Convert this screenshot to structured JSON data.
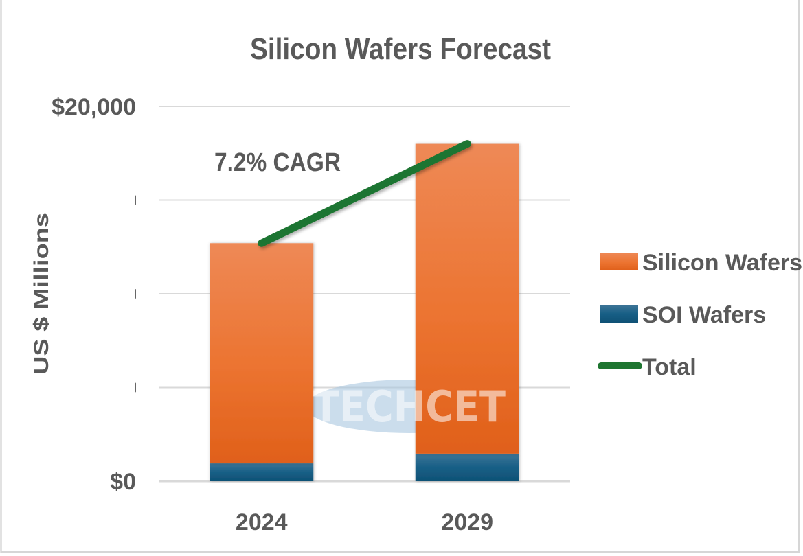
{
  "chart_data": {
    "type": "bar",
    "stacked": true,
    "title": "Silicon Wafers Forecast",
    "xlabel": "",
    "ylabel": "US $ Millions",
    "categories": [
      "2024",
      "2029"
    ],
    "series": [
      {
        "name": "SOI Wafers",
        "type": "bar",
        "color": "#17597f",
        "values": [
          950,
          1470
        ]
      },
      {
        "name": "Silicon Wafers",
        "type": "bar",
        "color": "#e8692a",
        "values": [
          11750,
          16530
        ]
      },
      {
        "name": "Total",
        "type": "line",
        "color": "#1e7530",
        "values": [
          12700,
          18000
        ]
      }
    ],
    "ylim": [
      0,
      20000
    ],
    "yticks": [
      0,
      5000,
      10000,
      15000,
      20000
    ],
    "ytick_labels": [
      "$0",
      "",
      "",
      "",
      "$20,000"
    ],
    "grid": true,
    "legend": {
      "placement": "right",
      "entries": [
        "Silicon Wafers",
        "SOI Wafers",
        "Total"
      ]
    },
    "annotations": [
      {
        "text": "7.2% CAGR",
        "near": "top-left of plot, above total line"
      }
    ],
    "watermark": "TECHCET"
  }
}
